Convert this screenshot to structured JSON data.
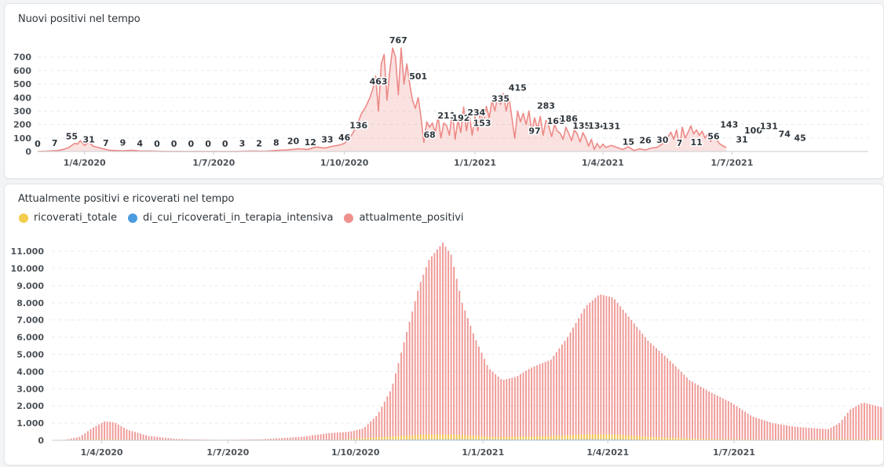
{
  "charts_meta": {
    "top_title": "Nuovi positivi nel tempo",
    "bottom_title": "Attualmente positivi e ricoverati nel tempo"
  },
  "legend": [
    {
      "label": "ricoverati_totale",
      "color": "#f2cd4e"
    },
    {
      "label": "di_cui_ricoverati_in_terapia_intensiva",
      "color": "#4b9be0"
    },
    {
      "label": "attualmente_positivi",
      "color": "#f0908d"
    }
  ],
  "chart_data": [
    {
      "type": "area",
      "title": "Nuovi positivi nel tempo",
      "color": "#ec8a86",
      "x_ticks": [
        "1/4/2020",
        "1/7/2020",
        "1/10/2020",
        "1/1/2021",
        "1/4/2021",
        "1/7/2021"
      ],
      "x_tick_days": [
        33,
        124,
        216,
        308,
        398,
        489
      ],
      "x_range_days": [
        0,
        585
      ],
      "ylim": [
        0,
        780
      ],
      "y_ticks": [
        0,
        100,
        200,
        300,
        400,
        500,
        600,
        700
      ],
      "y_tick_labels": [
        "0",
        "100",
        "200",
        "300",
        "400",
        "500",
        "600",
        "700"
      ],
      "grid": true,
      "series_points": [
        [
          0,
          0
        ],
        [
          5,
          2
        ],
        [
          10,
          5
        ],
        [
          14,
          7
        ],
        [
          18,
          15
        ],
        [
          22,
          30
        ],
        [
          26,
          60
        ],
        [
          28,
          55
        ],
        [
          30,
          80
        ],
        [
          33,
          45
        ],
        [
          36,
          70
        ],
        [
          39,
          40
        ],
        [
          42,
          31
        ],
        [
          46,
          20
        ],
        [
          50,
          10
        ],
        [
          55,
          7
        ],
        [
          60,
          5
        ],
        [
          66,
          9
        ],
        [
          72,
          4
        ],
        [
          80,
          3
        ],
        [
          90,
          0
        ],
        [
          100,
          0
        ],
        [
          110,
          0
        ],
        [
          120,
          0
        ],
        [
          130,
          0
        ],
        [
          140,
          0
        ],
        [
          150,
          3
        ],
        [
          160,
          2
        ],
        [
          168,
          8
        ],
        [
          176,
          12
        ],
        [
          184,
          20
        ],
        [
          190,
          15
        ],
        [
          196,
          33
        ],
        [
          202,
          25
        ],
        [
          208,
          40
        ],
        [
          212,
          46
        ],
        [
          216,
          60
        ],
        [
          219,
          90
        ],
        [
          222,
          136
        ],
        [
          225,
          200
        ],
        [
          228,
          280
        ],
        [
          231,
          330
        ],
        [
          234,
          400
        ],
        [
          236,
          463
        ],
        [
          238,
          560
        ],
        [
          240,
          300
        ],
        [
          242,
          650
        ],
        [
          244,
          720
        ],
        [
          246,
          380
        ],
        [
          248,
          600
        ],
        [
          250,
          767
        ],
        [
          252,
          700
        ],
        [
          254,
          420
        ],
        [
          256,
          767
        ],
        [
          258,
          500
        ],
        [
          260,
          650
        ],
        [
          262,
          501
        ],
        [
          264,
          380
        ],
        [
          266,
          320
        ],
        [
          268,
          400
        ],
        [
          270,
          250
        ],
        [
          272,
          68
        ],
        [
          274,
          220
        ],
        [
          276,
          180
        ],
        [
          278,
          211
        ],
        [
          280,
          140
        ],
        [
          282,
          260
        ],
        [
          284,
          100
        ],
        [
          286,
          211
        ],
        [
          288,
          192
        ],
        [
          290,
          120
        ],
        [
          292,
          300
        ],
        [
          294,
          90
        ],
        [
          296,
          234
        ],
        [
          298,
          140
        ],
        [
          300,
          330
        ],
        [
          302,
          153
        ],
        [
          304,
          280
        ],
        [
          306,
          120
        ],
        [
          308,
          260
        ],
        [
          310,
          153
        ],
        [
          312,
          310
        ],
        [
          314,
          200
        ],
        [
          316,
          335
        ],
        [
          318,
          250
        ],
        [
          320,
          380
        ],
        [
          322,
          300
        ],
        [
          324,
          415
        ],
        [
          326,
          350
        ],
        [
          328,
          430
        ],
        [
          330,
          300
        ],
        [
          332,
          400
        ],
        [
          334,
          250
        ],
        [
          336,
          97
        ],
        [
          338,
          300
        ],
        [
          340,
          220
        ],
        [
          342,
          283
        ],
        [
          344,
          200
        ],
        [
          346,
          300
        ],
        [
          348,
          150
        ],
        [
          350,
          250
        ],
        [
          352,
          168
        ],
        [
          354,
          260
        ],
        [
          356,
          120
        ],
        [
          358,
          230
        ],
        [
          360,
          186
        ],
        [
          362,
          110
        ],
        [
          364,
          200
        ],
        [
          366,
          150
        ],
        [
          368,
          135
        ],
        [
          370,
          90
        ],
        [
          372,
          180
        ],
        [
          374,
          134
        ],
        [
          376,
          80
        ],
        [
          378,
          160
        ],
        [
          380,
          131
        ],
        [
          382,
          70
        ],
        [
          384,
          140
        ],
        [
          386,
          100
        ],
        [
          388,
          40
        ],
        [
          390,
          90
        ],
        [
          392,
          15
        ],
        [
          394,
          60
        ],
        [
          396,
          26
        ],
        [
          398,
          55
        ],
        [
          400,
          30
        ],
        [
          404,
          45
        ],
        [
          408,
          30
        ],
        [
          412,
          15
        ],
        [
          416,
          35
        ],
        [
          420,
          7
        ],
        [
          424,
          20
        ],
        [
          428,
          11
        ],
        [
          432,
          25
        ],
        [
          436,
          30
        ],
        [
          440,
          56
        ],
        [
          442,
          80
        ],
        [
          444,
          110
        ],
        [
          446,
          143
        ],
        [
          448,
          90
        ],
        [
          450,
          160
        ],
        [
          452,
          31
        ],
        [
          454,
          180
        ],
        [
          456,
          100
        ],
        [
          458,
          140
        ],
        [
          460,
          190
        ],
        [
          462,
          131
        ],
        [
          464,
          160
        ],
        [
          466,
          120
        ],
        [
          468,
          150
        ],
        [
          470,
          100
        ],
        [
          472,
          130
        ],
        [
          474,
          74
        ],
        [
          476,
          110
        ],
        [
          478,
          90
        ],
        [
          480,
          60
        ],
        [
          482,
          45
        ],
        [
          485,
          30
        ]
      ],
      "data_labels": [
        {
          "x": 0,
          "y": 0,
          "label": "0"
        },
        {
          "x": 12,
          "y": 7,
          "label": "7"
        },
        {
          "x": 24,
          "y": 55,
          "label": "55"
        },
        {
          "x": 36,
          "y": 31,
          "label": "31"
        },
        {
          "x": 48,
          "y": 7,
          "label": "7"
        },
        {
          "x": 60,
          "y": 9,
          "label": "9"
        },
        {
          "x": 72,
          "y": 4,
          "label": "4"
        },
        {
          "x": 84,
          "y": 0,
          "label": "0"
        },
        {
          "x": 96,
          "y": 0,
          "label": "0"
        },
        {
          "x": 108,
          "y": 0,
          "label": "0"
        },
        {
          "x": 120,
          "y": 0,
          "label": "0"
        },
        {
          "x": 132,
          "y": 0,
          "label": "0"
        },
        {
          "x": 144,
          "y": 3,
          "label": "3"
        },
        {
          "x": 156,
          "y": 2,
          "label": "2"
        },
        {
          "x": 168,
          "y": 8,
          "label": "8"
        },
        {
          "x": 180,
          "y": 20,
          "label": "20"
        },
        {
          "x": 192,
          "y": 12,
          "label": "12"
        },
        {
          "x": 204,
          "y": 33,
          "label": "33"
        },
        {
          "x": 216,
          "y": 46,
          "label": "46"
        },
        {
          "x": 226,
          "y": 136,
          "label": "136"
        },
        {
          "x": 240,
          "y": 463,
          "label": "463"
        },
        {
          "x": 254,
          "y": 767,
          "label": "767"
        },
        {
          "x": 268,
          "y": 501,
          "label": "501"
        },
        {
          "x": 276,
          "y": 68,
          "label": "68"
        },
        {
          "x": 288,
          "y": 211,
          "label": "211"
        },
        {
          "x": 298,
          "y": 192,
          "label": "192"
        },
        {
          "x": 309,
          "y": 234,
          "label": "234"
        },
        {
          "x": 313,
          "y": 153,
          "label": "153"
        },
        {
          "x": 326,
          "y": 335,
          "label": "335"
        },
        {
          "x": 338,
          "y": 415,
          "label": "415"
        },
        {
          "x": 350,
          "y": 97,
          "label": "97"
        },
        {
          "x": 358,
          "y": 283,
          "label": "283"
        },
        {
          "x": 365,
          "y": 168,
          "label": "168"
        },
        {
          "x": 374,
          "y": 186,
          "label": "186"
        },
        {
          "x": 383,
          "y": 135,
          "label": "135"
        },
        {
          "x": 394,
          "y": 134,
          "label": "134"
        },
        {
          "x": 404,
          "y": 131,
          "label": "131"
        },
        {
          "x": 416,
          "y": 15,
          "label": "15"
        },
        {
          "x": 428,
          "y": 26,
          "label": "26"
        },
        {
          "x": 440,
          "y": 30,
          "label": "30"
        },
        {
          "x": 452,
          "y": 7,
          "label": "7"
        },
        {
          "x": 464,
          "y": 11,
          "label": "11"
        },
        {
          "x": 476,
          "y": 56,
          "label": "56"
        },
        {
          "x": 487,
          "y": 143,
          "label": "143"
        },
        {
          "x": 496,
          "y": 31,
          "label": "31"
        },
        {
          "x": 504,
          "y": 100,
          "label": "100"
        },
        {
          "x": 515,
          "y": 131,
          "label": "131"
        },
        {
          "x": 526,
          "y": 74,
          "label": "74"
        },
        {
          "x": 537,
          "y": 45,
          "label": "45"
        }
      ]
    },
    {
      "type": "bar",
      "title": "Attualmente positivi e ricoverati nel tempo",
      "x_ticks": [
        "1/4/2020",
        "1/7/2020",
        "1/10/2020",
        "1/1/2021",
        "1/4/2021",
        "1/7/2021"
      ],
      "x_tick_days": [
        36,
        127,
        219,
        311,
        401,
        492
      ],
      "x_range_days": [
        0,
        590
      ],
      "ylim": [
        0,
        11600
      ],
      "y_ticks": [
        0,
        1000,
        2000,
        3000,
        4000,
        5000,
        6000,
        7000,
        8000,
        9000,
        10000,
        11000
      ],
      "y_tick_labels": [
        "0",
        "1.000",
        "2.000",
        "3.000",
        "4.000",
        "5.000",
        "6.000",
        "7.000",
        "8.000",
        "9.000",
        "10.000",
        "11.000"
      ],
      "grid": true,
      "legend_position": "top-left",
      "series": [
        {
          "name": "attualmente_positivi",
          "color": "#ec8a86",
          "points": [
            [
              0,
              0
            ],
            [
              10,
              40
            ],
            [
              20,
              200
            ],
            [
              30,
              750
            ],
            [
              38,
              1100
            ],
            [
              45,
              1050
            ],
            [
              55,
              600
            ],
            [
              70,
              250
            ],
            [
              90,
              80
            ],
            [
              120,
              30
            ],
            [
              150,
              60
            ],
            [
              180,
              200
            ],
            [
              200,
              420
            ],
            [
              215,
              500
            ],
            [
              225,
              700
            ],
            [
              235,
              1500
            ],
            [
              245,
              3000
            ],
            [
              255,
              6000
            ],
            [
              265,
              9000
            ],
            [
              272,
              10500
            ],
            [
              282,
              11500
            ],
            [
              288,
              10800
            ],
            [
              296,
              8000
            ],
            [
              305,
              6000
            ],
            [
              315,
              4200
            ],
            [
              325,
              3500
            ],
            [
              335,
              3700
            ],
            [
              345,
              4200
            ],
            [
              360,
              4700
            ],
            [
              372,
              6000
            ],
            [
              385,
              7800
            ],
            [
              395,
              8500
            ],
            [
              405,
              8300
            ],
            [
              415,
              7300
            ],
            [
              430,
              5800
            ],
            [
              445,
              4700
            ],
            [
              460,
              3500
            ],
            [
              475,
              2800
            ],
            [
              490,
              2200
            ],
            [
              505,
              1400
            ],
            [
              520,
              1000
            ],
            [
              535,
              800
            ],
            [
              550,
              700
            ],
            [
              560,
              650
            ],
            [
              568,
              1000
            ],
            [
              576,
              1800
            ],
            [
              585,
              2200
            ],
            [
              595,
              2000
            ],
            [
              610,
              1700
            ],
            [
              625,
              1400
            ],
            [
              640,
              1100
            ],
            [
              648,
              900
            ]
          ]
        },
        {
          "name": "ricoverati_totale",
          "color": "#f2cd4e",
          "points": [
            [
              0,
              0
            ],
            [
              30,
              50
            ],
            [
              40,
              60
            ],
            [
              60,
              20
            ],
            [
              120,
              5
            ],
            [
              200,
              10
            ],
            [
              240,
              200
            ],
            [
              270,
              350
            ],
            [
              290,
              330
            ],
            [
              320,
              200
            ],
            [
              360,
              250
            ],
            [
              390,
              360
            ],
            [
              410,
              320
            ],
            [
              430,
              200
            ],
            [
              470,
              80
            ],
            [
              520,
              30
            ],
            [
              570,
              60
            ],
            [
              600,
              50
            ],
            [
              648,
              40
            ]
          ]
        },
        {
          "name": "di_cui_ricoverati_in_terapia_intensiva",
          "color": "#4b9be0",
          "points": [
            [
              0,
              0
            ],
            [
              40,
              15
            ],
            [
              100,
              3
            ],
            [
              250,
              40
            ],
            [
              290,
              50
            ],
            [
              350,
              45
            ],
            [
              400,
              55
            ],
            [
              450,
              20
            ],
            [
              520,
              5
            ],
            [
              580,
              10
            ],
            [
              648,
              8
            ]
          ]
        }
      ]
    }
  ]
}
